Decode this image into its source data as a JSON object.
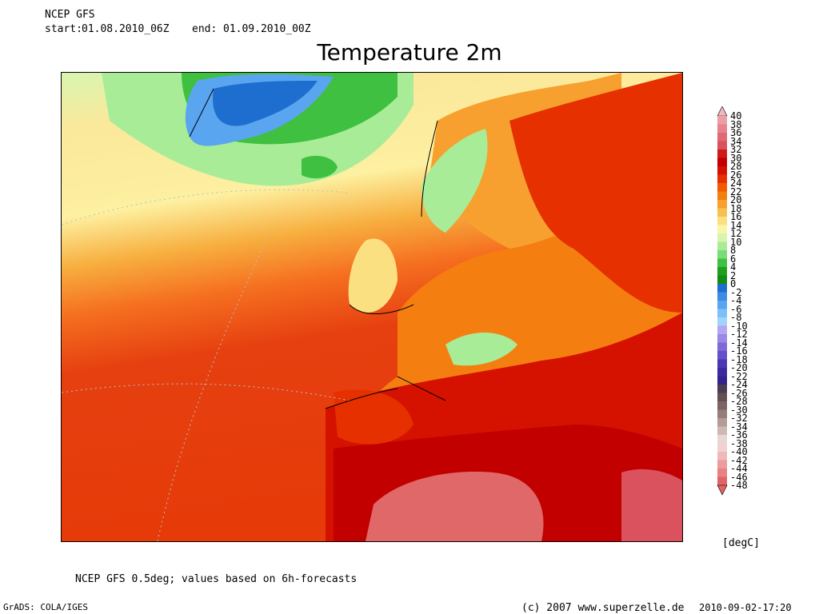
{
  "header": {
    "model": "NCEP GFS",
    "start_label": "start:",
    "start_value": "01.08.2010_06Z",
    "end_label": "end:",
    "end_value": "01.09.2010_00Z"
  },
  "title": "Temperature 2m",
  "footer": {
    "note": "NCEP GFS 0.5deg; values based on 6h-forecasts",
    "grads": "GrADS: COLA/IGES",
    "copyright": "(c) 2007 www.superzelle.de",
    "timestamp": "2010-09-02-17:20"
  },
  "colorbar": {
    "unit": "[degC]",
    "levels": [
      "40",
      "38",
      "36",
      "34",
      "32",
      "30",
      "28",
      "26",
      "24",
      "22",
      "20",
      "18",
      "16",
      "14",
      "12",
      "10",
      "8",
      "6",
      "4",
      "2",
      "0",
      "-2",
      "-4",
      "-6",
      "-8",
      "-10",
      "-12",
      "-14",
      "-16",
      "-18",
      "-20",
      "-22",
      "-24",
      "-26",
      "-28",
      "-30",
      "-32",
      "-34",
      "-36",
      "-38",
      "-40",
      "-42",
      "-44",
      "-46",
      "-48"
    ],
    "colors": [
      "#f2b8be",
      "#ec9ea6",
      "#e6838d",
      "#df6a75",
      "#d9525e",
      "#cf1a1a",
      "#c20000",
      "#d51200",
      "#e63000",
      "#f25a00",
      "#f57e10",
      "#f7a030",
      "#f8c050",
      "#fbe082",
      "#fdf5a6",
      "#d8f5b0",
      "#a8ec98",
      "#78dc78",
      "#40c040",
      "#1ea01e",
      "#148c14",
      "#1e6ecf",
      "#3c8ce6",
      "#5aa5f0",
      "#7dbff7",
      "#a0d4fa",
      "#b4a5f0",
      "#9b87e6",
      "#7d69d7",
      "#6450c8",
      "#4b37b4",
      "#3c28a0",
      "#32238c",
      "#4b3c50",
      "#645050",
      "#7d6464",
      "#967d78",
      "#b49b96",
      "#cdb9b4",
      "#e6d7d2",
      "#f0d2d2",
      "#f0b9b9",
      "#ec9c9c",
      "#e68282",
      "#e06464"
    ]
  },
  "map": {
    "description_colors": {
      "ocean_north": "#fbe89a",
      "ocean_south": "#e24a10",
      "land_south": "#c40a00",
      "greenland": "#2fb030",
      "glacier": "#2f6fd0",
      "sahara": "#e06868"
    }
  }
}
